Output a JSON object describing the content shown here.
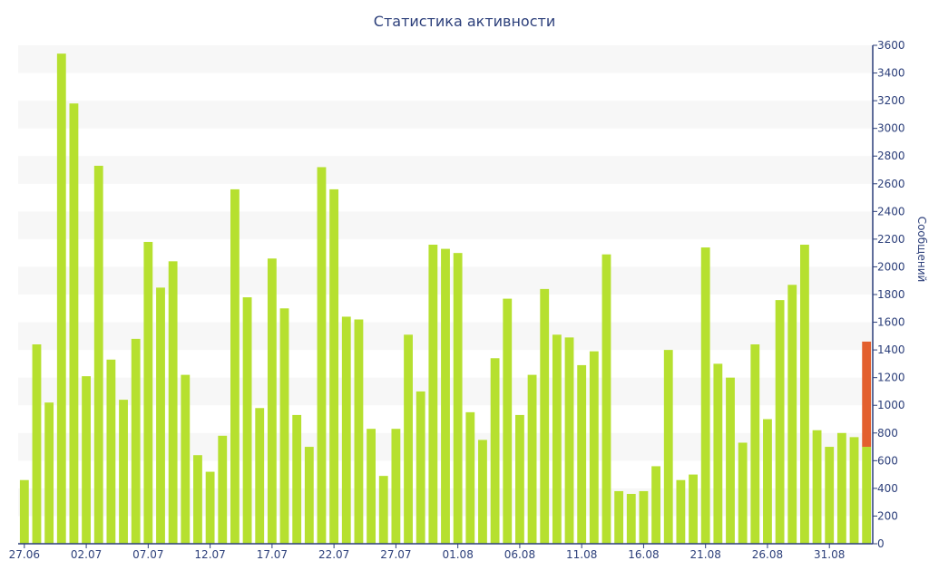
{
  "chart_data": {
    "type": "bar",
    "title": "Статистика активности",
    "xlabel": "",
    "ylabel": "Сообщений",
    "ylim": [
      0,
      3600
    ],
    "y_ticks": [
      0,
      200,
      400,
      600,
      800,
      1000,
      1200,
      1400,
      1600,
      1800,
      2000,
      2200,
      2400,
      2600,
      2800,
      3000,
      3200,
      3400,
      3600
    ],
    "y_axis_position": "right",
    "x_tick_labels": [
      "27.06",
      "02.07",
      "07.07",
      "12.07",
      "17.07",
      "22.07",
      "27.07",
      "01.08",
      "06.08",
      "11.08",
      "16.08",
      "21.08",
      "26.08",
      "31.08"
    ],
    "x_tick_every": 5,
    "grid": "horizontal alternating bands",
    "colors": {
      "bar": "#b6e02f",
      "current": "#e35f2e",
      "text": "#2c3f7a",
      "band": "#f7f7f7"
    },
    "series": [
      {
        "values": [
          460,
          1440,
          1020,
          3540,
          3180,
          1210,
          2730,
          1330,
          1040,
          1480,
          2180,
          1850,
          2040,
          1220,
          640,
          520,
          780,
          2560,
          1780,
          980,
          2060,
          1700,
          930,
          700,
          2720,
          2560,
          1640,
          1620,
          830,
          490,
          830,
          1510,
          1100,
          2160,
          2130,
          2100,
          950,
          750,
          1340,
          1770,
          930,
          1220,
          1840,
          1510,
          1490,
          1290,
          1390,
          2090,
          380,
          360,
          380,
          560,
          1400,
          460,
          500,
          2140,
          1300,
          1200,
          730,
          1440,
          900,
          1760,
          1870,
          2160,
          820,
          700,
          800,
          770,
          700
        ]
      }
    ],
    "current_day": {
      "value": 700,
      "extra": 760
    }
  }
}
